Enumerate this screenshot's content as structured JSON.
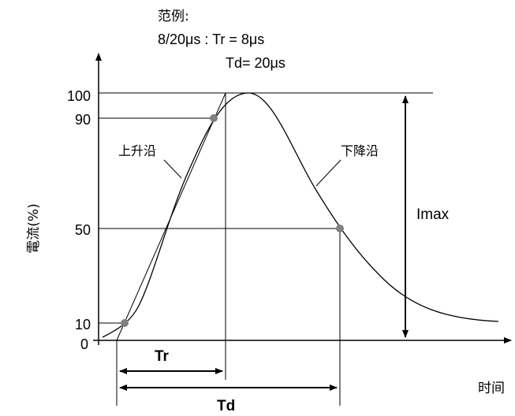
{
  "legend": {
    "title": "范例:",
    "line1": "8/20μs : Tr = 8μs",
    "line2": "Td= 20μs"
  },
  "axes": {
    "ylabel": "電流(%)",
    "xlabel": "时间",
    "origin_label": "0"
  },
  "y_ticks": [
    "100",
    "90",
    "50",
    "10"
  ],
  "annotations": {
    "rising_edge": "上升沿",
    "falling_edge": "下降沿",
    "imax": "Imax",
    "tr": "Tr",
    "td": "Td"
  },
  "colors": {
    "line": "#000000",
    "point": "#808080"
  }
}
